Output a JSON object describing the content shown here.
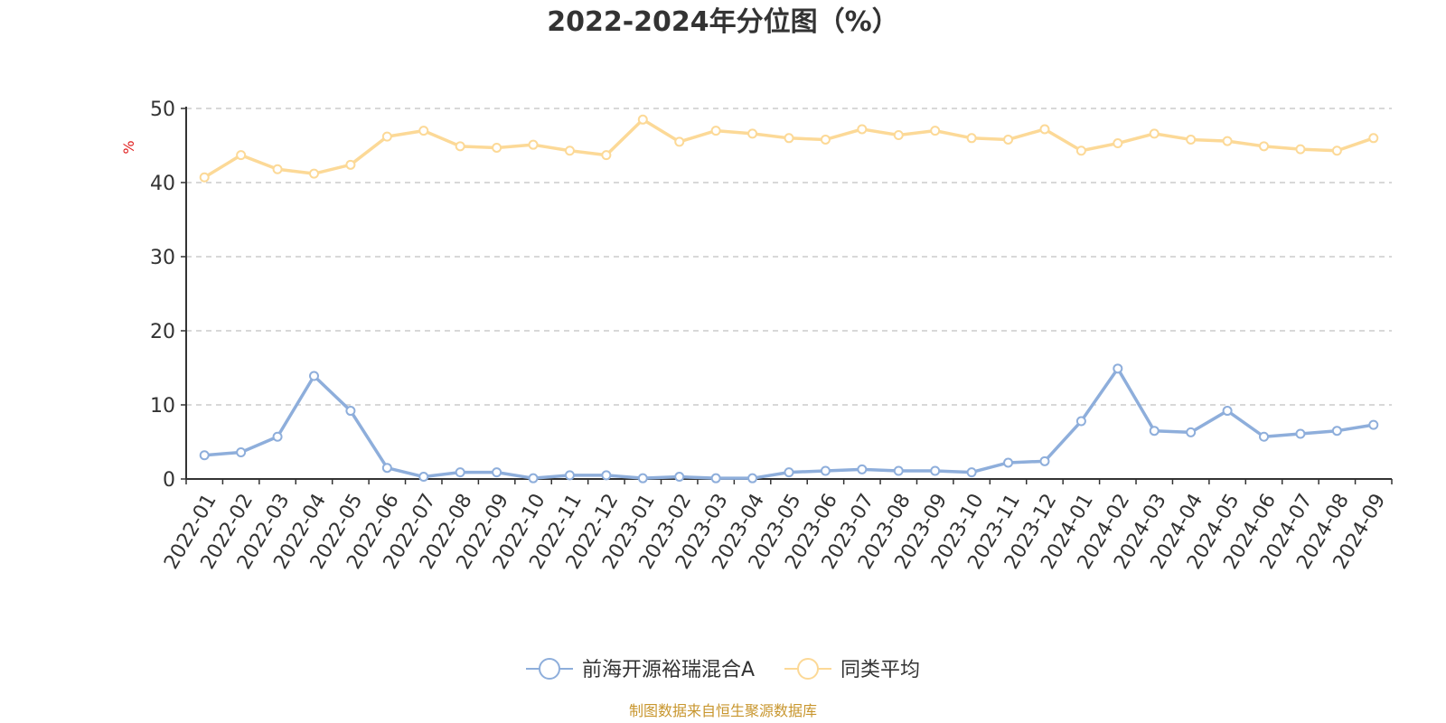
{
  "chart_data": {
    "type": "line",
    "title": "2022-2024年分位图（%）",
    "ylabel": "%",
    "xlabel": "",
    "ylim": [
      0,
      50
    ],
    "yticks": [
      0,
      10,
      20,
      30,
      40,
      50
    ],
    "grid": true,
    "legend_position": "bottom-center",
    "categories": [
      "2022-01",
      "2022-02",
      "2022-03",
      "2022-04",
      "2022-05",
      "2022-06",
      "2022-07",
      "2022-08",
      "2022-09",
      "2022-10",
      "2022-11",
      "2022-12",
      "2023-01",
      "2023-02",
      "2023-03",
      "2023-04",
      "2023-05",
      "2023-06",
      "2023-07",
      "2023-08",
      "2023-09",
      "2023-10",
      "2023-11",
      "2023-12",
      "2024-01",
      "2024-02",
      "2024-03",
      "2024-04",
      "2024-05",
      "2024-06",
      "2024-07",
      "2024-08",
      "2024-09"
    ],
    "series": [
      {
        "name": "前海开源裕瑞混合A",
        "color": "#8eaedb",
        "values": [
          3.2,
          3.6,
          5.7,
          13.9,
          9.2,
          1.5,
          0.3,
          0.9,
          0.9,
          0.1,
          0.5,
          0.5,
          0.1,
          0.3,
          0.1,
          0.1,
          0.9,
          1.1,
          1.3,
          1.1,
          1.1,
          0.9,
          2.2,
          2.4,
          7.8,
          14.9,
          6.5,
          6.3,
          9.2,
          5.7,
          6.1,
          6.5,
          7.3
        ]
      },
      {
        "name": "同类平均",
        "color": "#fcd997",
        "values": [
          40.7,
          43.7,
          41.8,
          41.2,
          42.4,
          46.2,
          47.0,
          44.9,
          44.7,
          45.1,
          44.3,
          43.7,
          48.5,
          45.5,
          47.0,
          46.6,
          46.0,
          45.8,
          47.2,
          46.4,
          47.0,
          46.0,
          45.8,
          47.2,
          44.3,
          45.3,
          46.6,
          45.8,
          45.6,
          44.9,
          44.5,
          44.3,
          46.0
        ]
      }
    ]
  },
  "footer": {
    "source_text": "制图数据来自恒生聚源数据库"
  }
}
